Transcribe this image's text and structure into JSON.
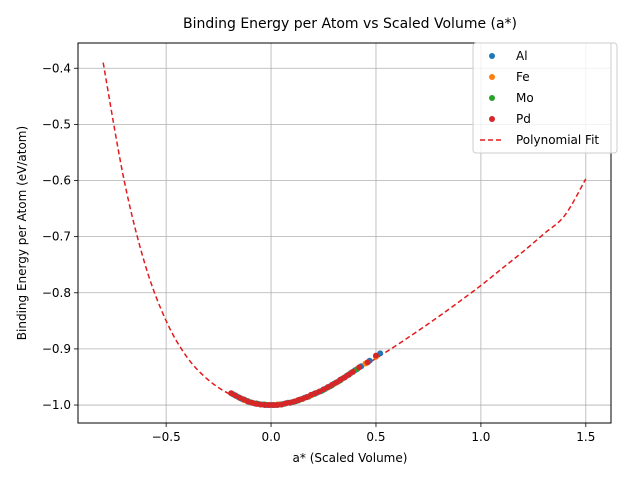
{
  "chart_data": {
    "type": "scatter",
    "title": "Binding Energy per Atom vs Scaled Volume (a*)",
    "xlabel": "a* (Scaled Volume)",
    "ylabel": "Binding Energy per Atom (eV/atom)",
    "xlim": [
      -0.92,
      1.62
    ],
    "ylim": [
      -1.032,
      -0.355
    ],
    "xticks": [
      -0.5,
      0.0,
      0.5,
      1.0,
      1.5
    ],
    "xtick_labels": [
      "−0.5",
      "0.0",
      "0.5",
      "1.0",
      "1.5"
    ],
    "yticks": [
      -1.0,
      -0.9,
      -0.8,
      -0.7,
      -0.6,
      -0.5,
      -0.4
    ],
    "ytick_labels": [
      "−1.0",
      "−0.9",
      "−0.8",
      "−0.7",
      "−0.6",
      "−0.5",
      "−0.4"
    ],
    "grid": true,
    "legend_position": "top-right",
    "series": [
      {
        "name": "Al",
        "kind": "points",
        "color": "#1f77b4",
        "x": [
          -0.18,
          -0.16,
          -0.14,
          -0.12,
          -0.1,
          -0.08,
          -0.06,
          -0.04,
          -0.02,
          0.0,
          0.02,
          0.04,
          0.06,
          0.08,
          0.1,
          0.12,
          0.14,
          0.16,
          0.18,
          0.2,
          0.22,
          0.24,
          0.26,
          0.28,
          0.3,
          0.32,
          0.34,
          0.36,
          0.38,
          0.4,
          0.43,
          0.47,
          0.52
        ],
        "y": [
          -0.981,
          -0.985,
          -0.989,
          -0.992,
          -0.995,
          -0.997,
          -0.998,
          -0.999,
          -1.0,
          -1.0,
          -1.0,
          -0.999,
          -0.998,
          -0.996,
          -0.995,
          -0.993,
          -0.99,
          -0.987,
          -0.985,
          -0.981,
          -0.978,
          -0.975,
          -0.971,
          -0.967,
          -0.962,
          -0.958,
          -0.953,
          -0.948,
          -0.943,
          -0.938,
          -0.931,
          -0.921,
          -0.908
        ]
      },
      {
        "name": "Fe",
        "kind": "points",
        "color": "#ff7f0e",
        "x": [
          -0.17,
          -0.13,
          -0.09,
          -0.05,
          -0.01,
          0.03,
          0.07,
          0.11,
          0.15,
          0.19,
          0.23,
          0.27,
          0.31,
          0.35,
          0.39,
          0.45,
          0.5
        ],
        "y": [
          -0.983,
          -0.991,
          -0.996,
          -0.999,
          -1.0,
          -0.999,
          -0.997,
          -0.994,
          -0.989,
          -0.983,
          -0.976,
          -0.969,
          -0.96,
          -0.951,
          -0.941,
          -0.926,
          -0.914
        ]
      },
      {
        "name": "Mo",
        "kind": "points",
        "color": "#2ca02c",
        "x": [
          -0.15,
          -0.11,
          -0.07,
          -0.03,
          0.01,
          0.05,
          0.09,
          0.13,
          0.17,
          0.21,
          0.25,
          0.29,
          0.33,
          0.37,
          0.41
        ],
        "y": [
          -0.987,
          -0.993,
          -0.997,
          -0.999,
          -1.0,
          -0.999,
          -0.996,
          -0.992,
          -0.986,
          -0.98,
          -0.973,
          -0.965,
          -0.956,
          -0.946,
          -0.936
        ]
      },
      {
        "name": "Pd",
        "kind": "points",
        "color": "#d62728",
        "x": [
          -0.19,
          -0.17,
          -0.15,
          -0.13,
          -0.11,
          -0.09,
          -0.07,
          -0.05,
          -0.03,
          -0.01,
          0.01,
          0.03,
          0.05,
          0.07,
          0.09,
          0.11,
          0.13,
          0.15,
          0.17,
          0.19,
          0.21,
          0.23,
          0.25,
          0.27,
          0.29,
          0.31,
          0.33,
          0.35,
          0.37,
          0.39,
          0.42,
          0.46,
          0.5
        ],
        "y": [
          -0.979,
          -0.983,
          -0.987,
          -0.99,
          -0.994,
          -0.996,
          -0.998,
          -0.999,
          -1.0,
          -1.0,
          -1.0,
          -1.0,
          -0.999,
          -0.997,
          -0.996,
          -0.994,
          -0.991,
          -0.989,
          -0.986,
          -0.982,
          -0.979,
          -0.976,
          -0.972,
          -0.968,
          -0.964,
          -0.96,
          -0.955,
          -0.951,
          -0.946,
          -0.941,
          -0.933,
          -0.924,
          -0.912
        ]
      },
      {
        "name": "Polynomial Fit",
        "kind": "line",
        "color": "#e41a1c",
        "dash": "5,3",
        "x": [
          -0.8,
          -0.7,
          -0.6,
          -0.5,
          -0.4,
          -0.3,
          -0.2,
          -0.1,
          0.0,
          0.1,
          0.2,
          0.3,
          0.4,
          0.5,
          0.6,
          0.7,
          0.8,
          0.9,
          1.0,
          1.1,
          1.2,
          1.3,
          1.4,
          1.5
        ],
        "y": [
          -0.39,
          -0.6,
          -0.75,
          -0.85,
          -0.915,
          -0.955,
          -0.98,
          -0.995,
          -1.0,
          -0.995,
          -0.98,
          -0.962,
          -0.94,
          -0.917,
          -0.893,
          -0.868,
          -0.842,
          -0.815,
          -0.787,
          -0.757,
          -0.727,
          -0.695,
          -0.662,
          -0.597
        ]
      }
    ]
  }
}
